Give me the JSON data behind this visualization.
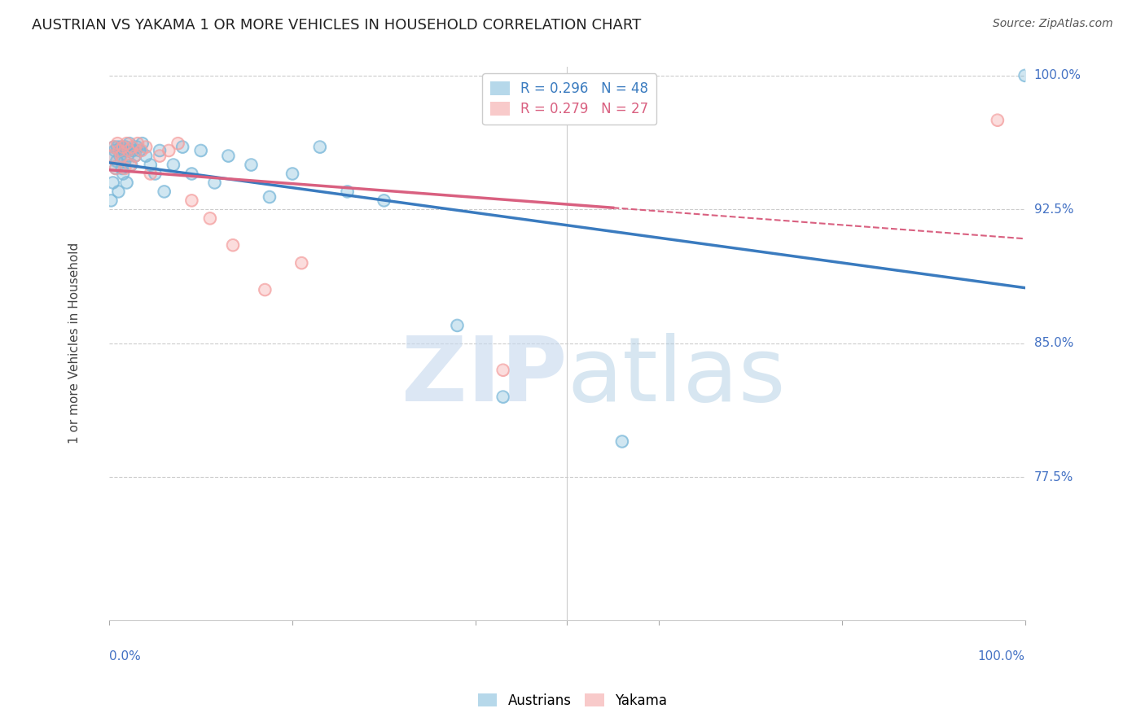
{
  "title": "AUSTRIAN VS YAKAMA 1 OR MORE VEHICLES IN HOUSEHOLD CORRELATION CHART",
  "source": "Source: ZipAtlas.com",
  "ylabel": "1 or more Vehicles in Household",
  "xlim": [
    0.0,
    1.0
  ],
  "ylim": [
    0.695,
    1.005
  ],
  "austrians_R": 0.296,
  "austrians_N": 48,
  "yakama_R": 0.279,
  "yakama_N": 27,
  "austrians_color": "#7ab8d9",
  "yakama_color": "#f4a0a0",
  "trendline_blue": "#3a7bbf",
  "trendline_pink": "#d96080",
  "background_color": "#ffffff",
  "grid_color": "#cccccc",
  "aus_x": [
    0.002,
    0.003,
    0.004,
    0.005,
    0.006,
    0.007,
    0.008,
    0.009,
    0.01,
    0.011,
    0.012,
    0.013,
    0.014,
    0.015,
    0.016,
    0.017,
    0.018,
    0.019,
    0.02,
    0.021,
    0.022,
    0.024,
    0.026,
    0.028,
    0.03,
    0.033,
    0.036,
    0.04,
    0.045,
    0.05,
    0.055,
    0.06,
    0.07,
    0.08,
    0.09,
    0.1,
    0.115,
    0.13,
    0.155,
    0.175,
    0.2,
    0.23,
    0.26,
    0.3,
    0.38,
    0.43,
    0.56,
    1.0
  ],
  "aus_y": [
    0.93,
    0.955,
    0.94,
    0.96,
    0.958,
    0.948,
    0.952,
    0.96,
    0.935,
    0.958,
    0.955,
    0.96,
    0.948,
    0.945,
    0.958,
    0.952,
    0.96,
    0.94,
    0.955,
    0.958,
    0.962,
    0.95,
    0.958,
    0.955,
    0.96,
    0.958,
    0.962,
    0.955,
    0.95,
    0.945,
    0.958,
    0.935,
    0.95,
    0.96,
    0.945,
    0.958,
    0.94,
    0.955,
    0.95,
    0.932,
    0.945,
    0.96,
    0.935,
    0.93,
    0.86,
    0.82,
    0.795,
    1.0
  ],
  "yak_x": [
    0.003,
    0.005,
    0.007,
    0.009,
    0.011,
    0.013,
    0.015,
    0.017,
    0.019,
    0.021,
    0.023,
    0.025,
    0.028,
    0.031,
    0.035,
    0.04,
    0.045,
    0.055,
    0.065,
    0.075,
    0.09,
    0.11,
    0.135,
    0.17,
    0.21,
    0.43,
    0.97
  ],
  "yak_y": [
    0.955,
    0.96,
    0.948,
    0.962,
    0.958,
    0.955,
    0.96,
    0.948,
    0.962,
    0.958,
    0.95,
    0.96,
    0.955,
    0.962,
    0.958,
    0.96,
    0.945,
    0.955,
    0.958,
    0.962,
    0.93,
    0.92,
    0.905,
    0.88,
    0.895,
    0.835,
    0.975
  ],
  "ytick_positions": [
    0.775,
    0.85,
    0.925,
    1.0
  ],
  "ytick_labels": {
    "0.775": "77.5%",
    "0.85": "85.0%",
    "0.925": "92.5%",
    "1.0": "100.0%"
  },
  "watermark_zip_color": "#c5d8ee",
  "watermark_atlas_color": "#a8c8e0"
}
